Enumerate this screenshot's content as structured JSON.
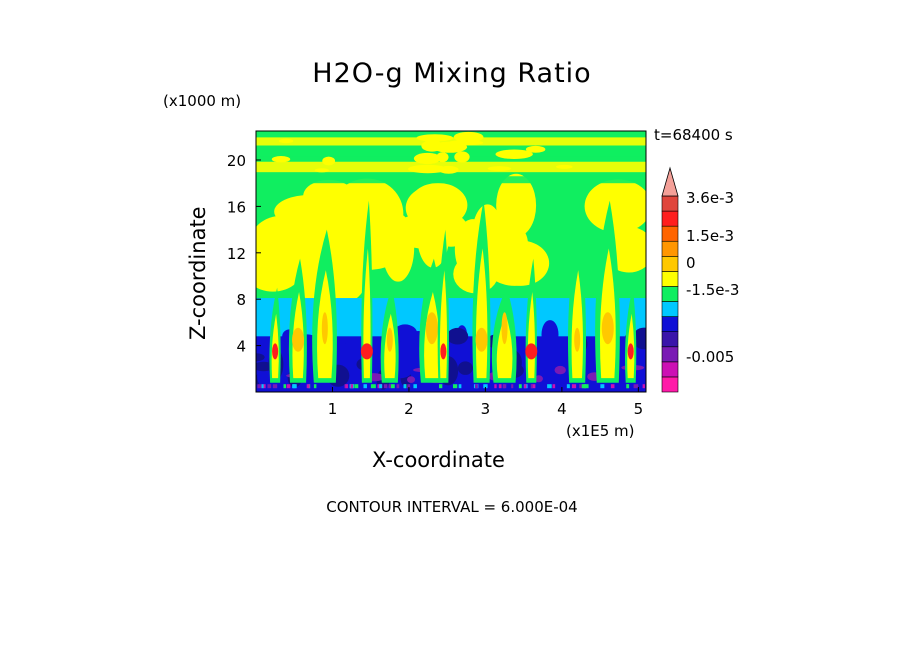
{
  "chart_data": {
    "type": "heatmap",
    "title": "H2O-g Mixing Ratio",
    "xlabel": "X-coordinate",
    "ylabel": "Z-coordinate",
    "x_unit": "(x1E5 m)",
    "y_unit": "(x1000 m)",
    "time_label": "t=68400 s",
    "contour_interval_label": "CONTOUR INTERVAL = 6.000E-04",
    "xlim": [
      0,
      5.1
    ],
    "ylim": [
      0,
      22.5
    ],
    "x_ticks": [
      1,
      2,
      3,
      4,
      5
    ],
    "y_ticks": [
      4,
      8,
      12,
      16,
      20
    ],
    "x_tick_labels": [
      "1",
      "2",
      "3",
      "4",
      "5"
    ],
    "y_tick_labels": [
      "4",
      "8",
      "12",
      "16",
      "20"
    ],
    "colorbar": {
      "levels": [
        "-0.005",
        "-4.2e-3",
        "-3.6e-3",
        "-3.0e-3",
        "-2.4e-3",
        "-1.8e-3",
        "-1.2e-3",
        "-6e-4",
        "0",
        "6e-4",
        "1.2e-3",
        "1.8e-3",
        "2.4e-3",
        "3.0e-3",
        "3.6e-3"
      ],
      "colors": [
        "#ff1aa8",
        "#cc10b4",
        "#7a1ab4",
        "#3a14aa",
        "#1010d6",
        "#00c8ff",
        "#10ee60",
        "#ffff00",
        "#ffc800",
        "#ff9600",
        "#ff6400",
        "#ff1e1e",
        "#e0463c",
        "#f4a098"
      ],
      "tick_labels": [
        "3.6e-3",
        "1.5e-3",
        "0",
        "-1.5e-3",
        "-0.005"
      ]
    },
    "layers": [
      {
        "z_range": [
          0,
          1
        ],
        "dominant": "#1010d6",
        "description_level": "low"
      },
      {
        "z_range": [
          1,
          8
        ],
        "dominant": "#1010d6",
        "secondary": "#00c8ff"
      },
      {
        "z_range": [
          8,
          10
        ],
        "dominant": "#10ee60"
      },
      {
        "z_range": [
          10,
          20
        ],
        "dominant": "#ffff00",
        "secondary": "#10ee60"
      },
      {
        "z_range": [
          20,
          22.5
        ],
        "dominant": "#10ee60",
        "secondary": "#ffff00"
      }
    ],
    "plumes_x": [
      0.25,
      0.55,
      0.9,
      1.45,
      1.75,
      2.3,
      2.45,
      2.95,
      3.25,
      3.6,
      4.2,
      4.6,
      4.9
    ]
  }
}
